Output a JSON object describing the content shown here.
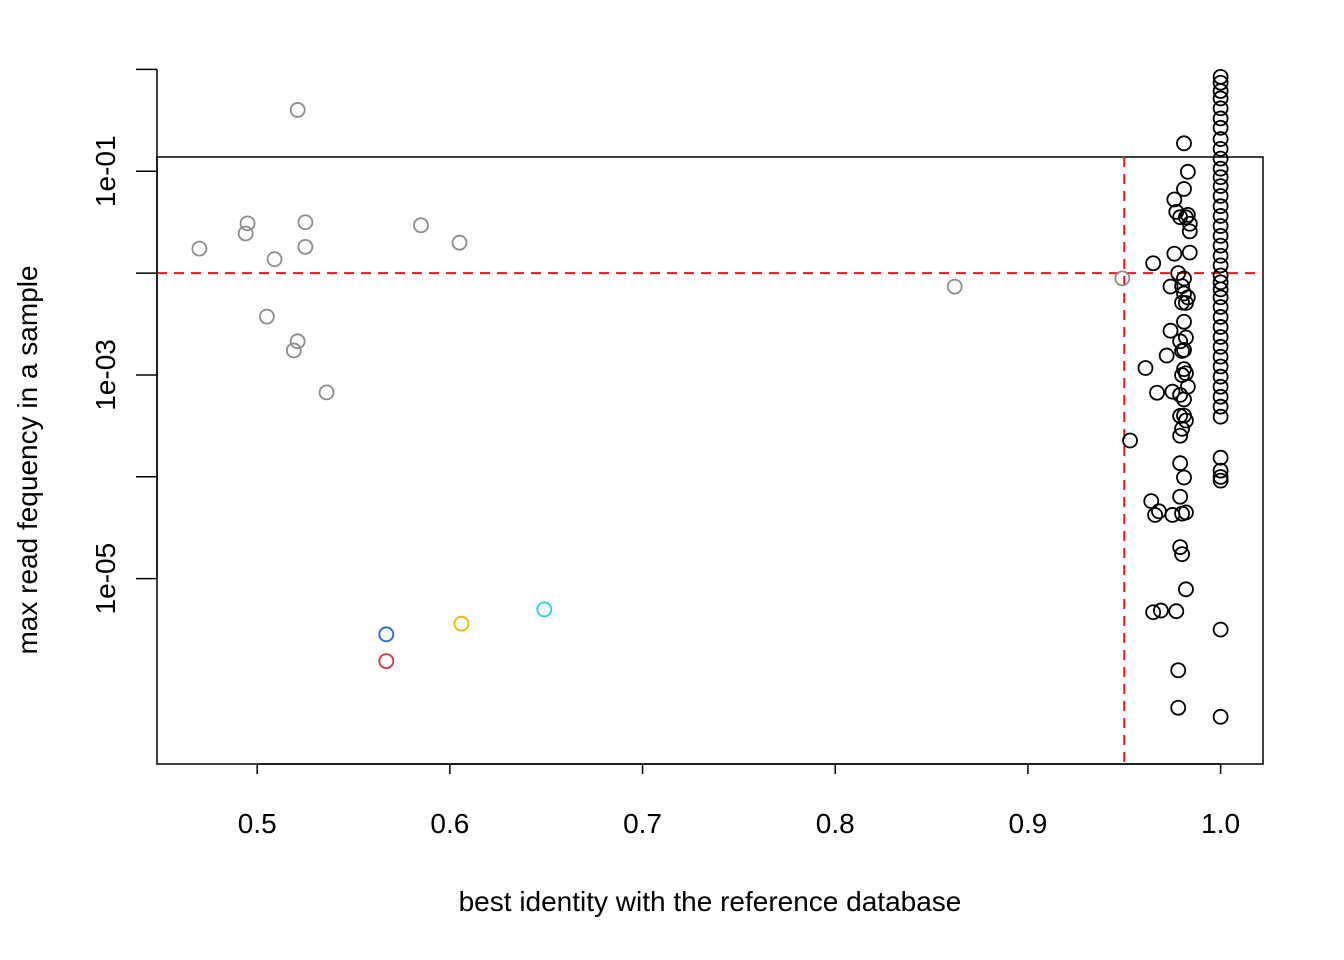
{
  "chart_data": {
    "type": "scatter",
    "title": "",
    "xlabel": "best identity with the reference database",
    "ylabel": "max read fequency in a sample",
    "xlim": [
      0.448,
      1.022
    ],
    "ylim_log10": [
      -6.82,
      -0.86
    ],
    "y_scale": "log",
    "x_ticks": [
      0.5,
      0.6,
      0.7,
      0.8,
      0.9,
      1.0
    ],
    "x_tick_labels": [
      "0.5",
      "0.6",
      "0.7",
      "0.8",
      "0.9",
      "1.0"
    ],
    "y_tick_values": [
      1,
      0.1,
      0.01,
      0.001,
      0.0001,
      1e-05
    ],
    "y_tick_labels": [
      "",
      "1e-01",
      "",
      "1e-03",
      "",
      "1e-05"
    ],
    "grid": false,
    "ref_lines": {
      "x": 0.95,
      "y": 0.01,
      "color": "#e41a1c",
      "style": "dashed"
    },
    "colors": {
      "black": "#000000",
      "grey": "#8c8c8c",
      "blue": "#2166d6",
      "red": "#df2c4a",
      "yellow": "#e6b800",
      "cyan": "#25d5d5"
    },
    "series": [
      {
        "color": "grey",
        "points": [
          [
            0.521,
            0.4
          ],
          [
            0.47,
            0.0174
          ],
          [
            0.495,
            0.0308
          ],
          [
            0.494,
            0.0245
          ],
          [
            0.525,
            0.0316
          ],
          [
            0.509,
            0.0137
          ],
          [
            0.525,
            0.0181
          ],
          [
            0.585,
            0.0295
          ],
          [
            0.605,
            0.0199
          ],
          [
            0.505,
            0.00374
          ],
          [
            0.521,
            0.00214
          ],
          [
            0.519,
            0.00174
          ],
          [
            0.536,
            0.000674
          ],
          [
            0.862,
            0.00737
          ],
          [
            0.949,
            0.00888
          ]
        ]
      },
      {
        "color": "black",
        "points": [
          [
            0.953,
            0.000227
          ],
          [
            0.961,
            0.00117
          ],
          [
            0.964,
            5.77e-05
          ],
          [
            0.966,
            4.22e-05
          ],
          [
            0.965,
            4.68e-06
          ],
          [
            0.965,
            0.0125
          ],
          [
            0.967,
            0.000669
          ],
          [
            0.968,
            4.58e-05
          ],
          [
            0.969,
            4.86e-06
          ],
          [
            0.972,
            0.00155
          ],
          [
            0.974,
            0.00738
          ],
          [
            0.974,
            0.00272
          ],
          [
            0.975,
            4.22e-05
          ],
          [
            0.975,
            0.000685
          ],
          [
            0.976,
            0.0155
          ],
          [
            0.976,
            0.0528
          ],
          [
            0.977,
            0.0399
          ],
          [
            0.977,
            4.79e-06
          ],
          [
            0.978,
            0.01
          ],
          [
            0.978,
            5.4e-07
          ],
          [
            0.978,
            1.26e-06
          ],
          [
            0.979,
            0.0354
          ],
          [
            0.979,
            0.00214
          ],
          [
            0.979,
            0.000637
          ],
          [
            0.979,
            0.000396
          ],
          [
            0.979,
            0.000253
          ],
          [
            0.979,
            0.000136
          ],
          [
            0.979,
            6.37e-05
          ],
          [
            0.979,
            2.04e-05
          ],
          [
            0.98,
            4.35e-05
          ],
          [
            0.98,
            0.00745
          ],
          [
            0.98,
            0.00513
          ],
          [
            0.98,
            0.00172
          ],
          [
            0.98,
            0.000997
          ],
          [
            0.98,
            0.000296
          ],
          [
            0.98,
            1.74e-05
          ],
          [
            0.981,
            0.188
          ],
          [
            0.981,
            0.067
          ],
          [
            0.981,
            0.00885
          ],
          [
            0.981,
            0.00631
          ],
          [
            0.981,
            0.00333
          ],
          [
            0.981,
            0.00176
          ],
          [
            0.981,
            0.00114
          ],
          [
            0.981,
            0.000575
          ],
          [
            0.981,
            0.000399
          ],
          [
            0.981,
            9.84e-05
          ],
          [
            0.982,
            4.47e-05
          ],
          [
            0.982,
            7.86e-06
          ],
          [
            0.982,
            0.0353
          ],
          [
            0.982,
            0.00509
          ],
          [
            0.982,
            0.00233
          ],
          [
            0.982,
            0.00104
          ],
          [
            0.982,
            0.000357
          ],
          [
            0.983,
            0.0988
          ],
          [
            0.983,
            0.00577
          ],
          [
            0.983,
            0.0373
          ],
          [
            0.983,
            0.000767
          ],
          [
            0.984,
            0.0305
          ],
          [
            0.984,
            0.0257
          ],
          [
            0.984,
            0.0159
          ],
          [
            1.0,
            0.845
          ],
          [
            1.0,
            0.74
          ],
          [
            1.0,
            0.614
          ],
          [
            1.0,
            0.519
          ],
          [
            1.0,
            0.415
          ],
          [
            1.0,
            0.33
          ],
          [
            1.0,
            0.267
          ],
          [
            1.0,
            0.207
          ],
          [
            1.0,
            0.166
          ],
          [
            1.0,
            0.133
          ],
          [
            1.0,
            0.106
          ],
          [
            1.0,
            0.0875
          ],
          [
            1.0,
            0.0715
          ],
          [
            1.0,
            0.0572
          ],
          [
            1.0,
            0.0454
          ],
          [
            1.0,
            0.0364
          ],
          [
            1.0,
            0.029
          ],
          [
            1.0,
            0.0232
          ],
          [
            1.0,
            0.0186
          ],
          [
            1.0,
            0.0148
          ],
          [
            1.0,
            0.0119
          ],
          [
            1.0,
            0.00948
          ],
          [
            1.0,
            0.00812
          ],
          [
            1.0,
            0.00692
          ],
          [
            1.0,
            0.00578
          ],
          [
            1.0,
            0.00465
          ],
          [
            1.0,
            0.00371
          ],
          [
            1.0,
            0.00296
          ],
          [
            1.0,
            0.00236
          ],
          [
            1.0,
            0.00189
          ],
          [
            1.0,
            0.00151
          ],
          [
            1.0,
            0.00121
          ],
          [
            1.0,
            0.000961
          ],
          [
            1.0,
            0.000766
          ],
          [
            1.0,
            0.000611
          ],
          [
            1.0,
            0.000488
          ],
          [
            1.0,
            0.000389
          ],
          [
            1.0,
            0.000154
          ],
          [
            1.0,
            0.000115
          ],
          [
            1.0,
            9.17e-05
          ],
          [
            1.0,
            9.96e-05
          ],
          [
            1.0,
            3.16e-06
          ],
          [
            1.0,
            4.4e-07
          ]
        ]
      },
      {
        "color": "blue",
        "points": [
          [
            0.567,
            2.84e-06
          ]
        ]
      },
      {
        "color": "red",
        "points": [
          [
            0.567,
            1.55e-06
          ]
        ]
      },
      {
        "color": "yellow",
        "points": [
          [
            0.606,
            3.61e-06
          ]
        ]
      },
      {
        "color": "cyan",
        "points": [
          [
            0.649,
            4.99e-06
          ]
        ]
      }
    ]
  }
}
